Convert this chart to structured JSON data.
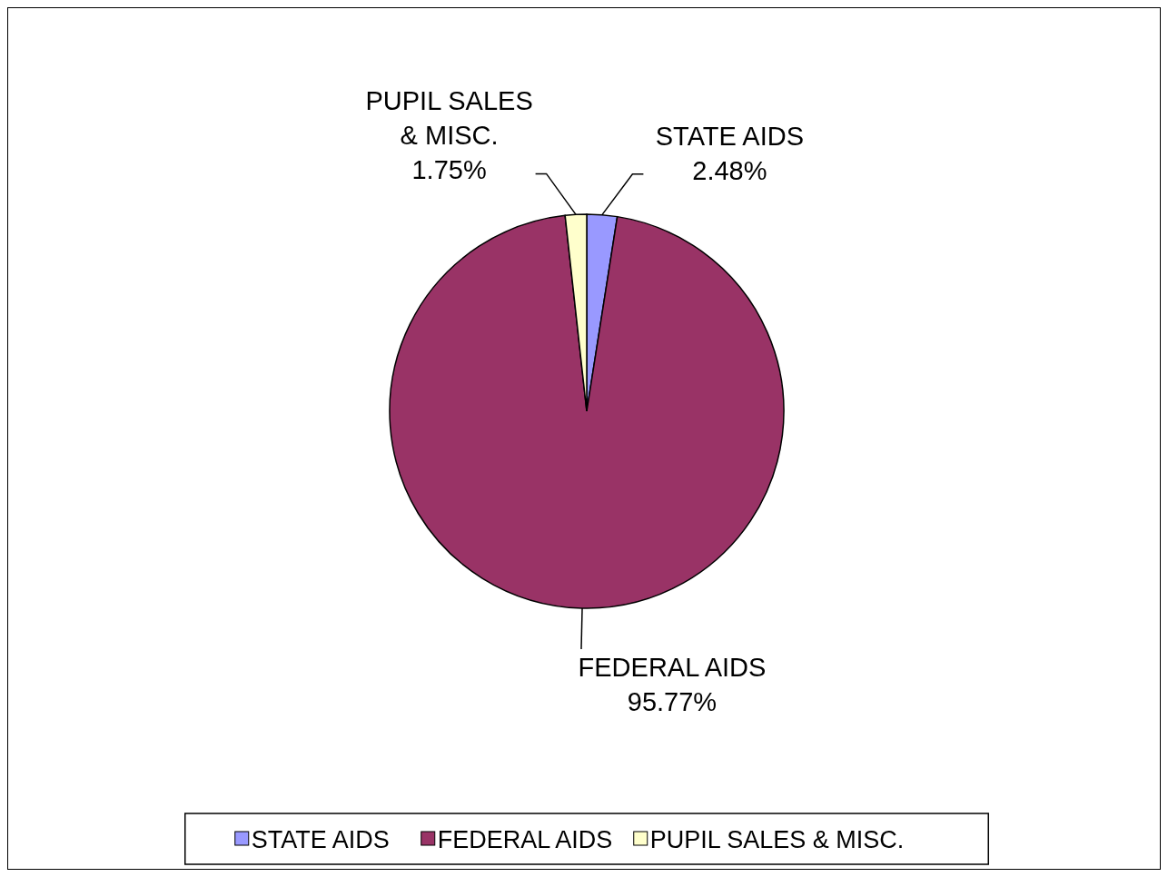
{
  "chart_data": {
    "type": "pie",
    "categories": [
      "STATE AIDS",
      "FEDERAL AIDS",
      "PUPIL SALES & MISC."
    ],
    "values": [
      2.48,
      95.77,
      1.75
    ],
    "colors": [
      "#9999ff",
      "#993366",
      "#ffffcc"
    ],
    "value_labels": [
      "2.48%",
      "95.77%",
      "1.75%"
    ],
    "legend": "bottom"
  }
}
